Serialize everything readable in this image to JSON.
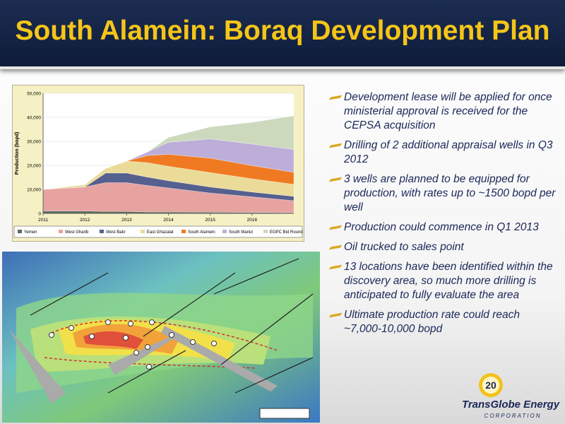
{
  "header": {
    "title": "South Alamein: Boraq Development Plan"
  },
  "chart_data": {
    "type": "stacked-area",
    "y_label": "Production (bopd)",
    "x": [
      2011,
      2012,
      2012.5,
      2013,
      2013.5,
      2014,
      2015,
      2016,
      2017
    ],
    "xlim": [
      2011,
      2017
    ],
    "xticks": [
      2011,
      2012,
      2013,
      2014,
      2015,
      2016
    ],
    "ylim": [
      0,
      50000
    ],
    "yticks": [
      0,
      {
        "value": 10000,
        "label": "10,000"
      },
      {
        "value": 20000,
        "label": "20,000"
      },
      {
        "value": 30000,
        "label": "30,000"
      },
      {
        "value": 40000,
        "label": "40,000"
      },
      {
        "value": 50000,
        "label": "50,000"
      }
    ],
    "series": [
      {
        "name": "Yemen",
        "color": "#5b6b5b",
        "values": [
          1000,
          1000,
          800,
          800,
          600,
          600,
          500,
          400,
          300
        ]
      },
      {
        "name": "West Gharib",
        "color": "#e6a3a0",
        "values": [
          9000,
          10000,
          12000,
          12000,
          11000,
          10000,
          8000,
          6500,
          5000
        ]
      },
      {
        "name": "West Bakr",
        "color": "#56608e",
        "values": [
          0,
          0,
          4000,
          4000,
          3500,
          3000,
          2500,
          2000,
          1800
        ]
      },
      {
        "name": "East Ghazalat",
        "color": "#eadb98",
        "values": [
          0,
          1000,
          2000,
          5000,
          6000,
          6000,
          6000,
          5500,
          5000
        ]
      },
      {
        "name": "South Alamein",
        "color": "#f07a22",
        "values": [
          0,
          0,
          0,
          0,
          3000,
          5000,
          6000,
          5500,
          5000
        ]
      },
      {
        "name": "South Mariut",
        "color": "#bcaed8",
        "values": [
          0,
          0,
          0,
          0,
          1500,
          5000,
          8000,
          9000,
          9500
        ]
      },
      {
        "name": "EGPC Bid Round",
        "color": "#cdd9bd",
        "values": [
          0,
          0,
          0,
          0,
          0,
          2000,
          5000,
          9000,
          14000
        ]
      }
    ]
  },
  "bullets": [
    "Development lease will be applied for once ministerial approval is received for the CEPSA acquisition",
    "Drilling of 2 additional appraisal wells in Q3 2012",
    "3 wells are planned to be equipped for production, with rates up to ~1500 bopd per well",
    "Production could commence in Q1 2013",
    "Oil trucked to sales point",
    "13 locations have been identified within the discovery area, so much more drilling is anticipated to fully evaluate the area",
    "Ultimate production rate could reach ~7,000-10,000 bopd"
  ],
  "footer": {
    "page_number": "20",
    "company": "TransGlobe Energy",
    "company_sub": "CORPORATION"
  }
}
